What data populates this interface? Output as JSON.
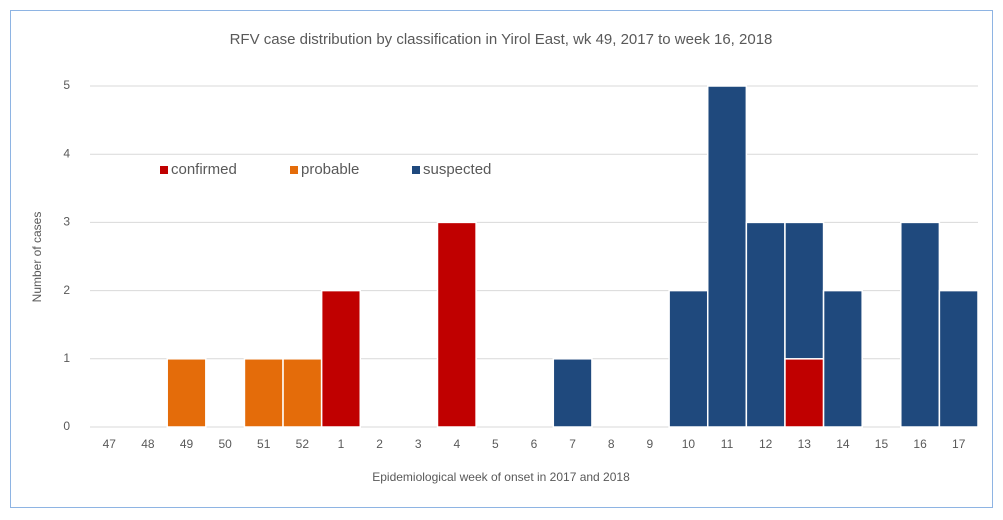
{
  "chart_data": {
    "type": "stacked_bar",
    "title": "RFV case distribution by classification in Yirol East, wk 49, 2017 to week 16, 2018",
    "x_label": "Epidemiological week of onset in 2017 and 2018",
    "y_label": "Number of cases",
    "categories": [
      "47",
      "48",
      "49",
      "50",
      "51",
      "52",
      "1",
      "2",
      "3",
      "4",
      "5",
      "6",
      "7",
      "8",
      "9",
      "10",
      "11",
      "12",
      "13",
      "14",
      "15",
      "16",
      "17"
    ],
    "series": [
      {
        "name": "confirmed",
        "color": "#c00000",
        "values": [
          0,
          0,
          0,
          0,
          0,
          0,
          2,
          0,
          0,
          3,
          0,
          0,
          0,
          0,
          0,
          0,
          0,
          0,
          1,
          0,
          0,
          0,
          0
        ]
      },
      {
        "name": "probable",
        "color": "#e46c0a",
        "values": [
          0,
          0,
          1,
          0,
          1,
          1,
          0,
          0,
          0,
          0,
          0,
          0,
          0,
          0,
          0,
          0,
          0,
          0,
          0,
          0,
          0,
          0,
          0
        ]
      },
      {
        "name": "suspected",
        "color": "#1f497d",
        "values": [
          0,
          0,
          0,
          0,
          0,
          0,
          0,
          0,
          0,
          0,
          0,
          0,
          1,
          0,
          0,
          2,
          5,
          3,
          2,
          2,
          0,
          3,
          2
        ]
      }
    ],
    "ylim": [
      0,
      5
    ],
    "yticks": [
      0,
      1,
      2,
      3,
      4,
      5
    ],
    "grid": true,
    "legend": "upper left"
  }
}
